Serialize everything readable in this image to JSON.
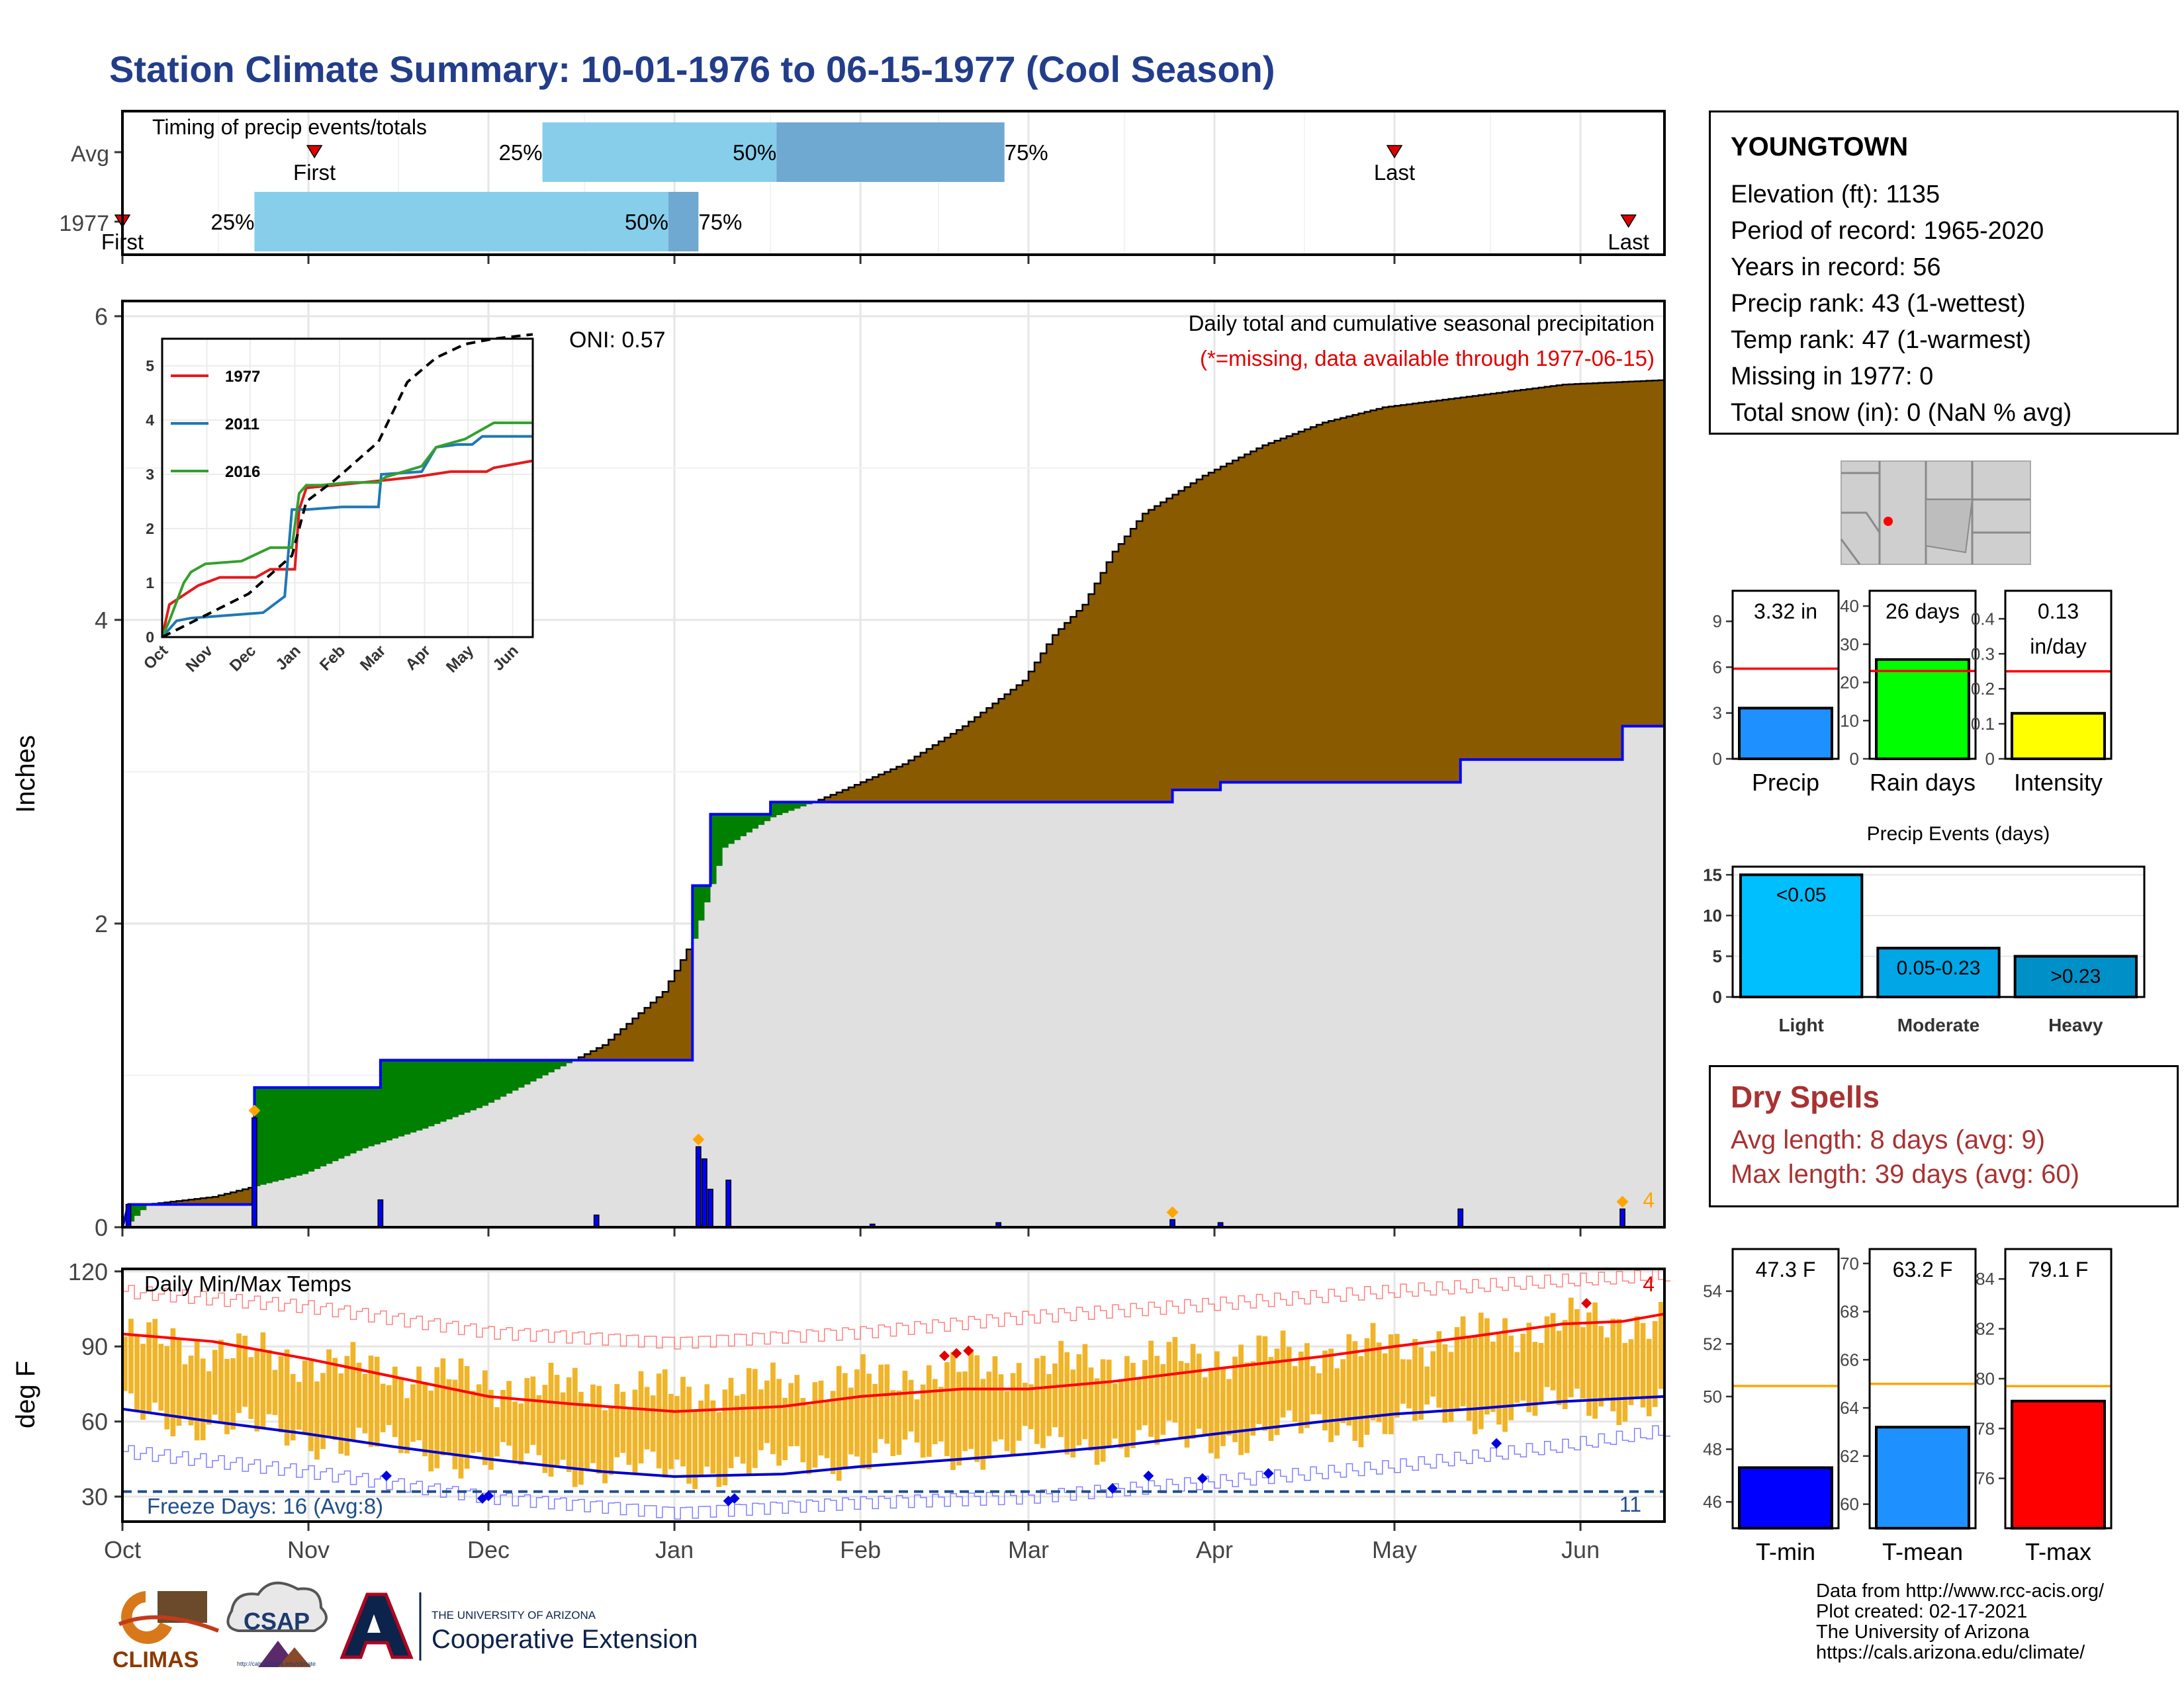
{
  "title": "Station Climate Summary: 10-01-1976 to 06-15-1977 (Cool Season)",
  "colors": {
    "title": "#223d8a",
    "cumulative_fill": "#8a5a00",
    "deficit_fill": "#008000",
    "normal_fill": "#e0e0e0",
    "bars": "#0000ff",
    "temp_bars": "#f0b428",
    "tmax_normal": "#ff0000",
    "tmin_normal": "#0000cc",
    "light": "#00bfff",
    "moderate": "#00a6e6",
    "heavy": "#0090c8",
    "dry": "#a83232"
  },
  "station": {
    "name": "YOUNGTOWN",
    "lines": [
      "Elevation (ft): 1135",
      "Period of record: 1965-2020",
      "Years in record: 56",
      "Precip rank: 43 (1-wettest)",
      "Temp rank: 47 (1-warmest)",
      "Missing in 1977: 0",
      "Total snow (in): 0 (NaN % avg)"
    ]
  },
  "dry_spells": {
    "heading": "Dry Spells",
    "avg": "Avg length: 8 days (avg: 9)",
    "max": "Max length: 39 days (avg: 60)"
  },
  "footer": [
    "Data from http://www.rcc-acis.org/",
    "Plot created: 02-17-2021",
    "The University of Arizona",
    "https://cals.arizona.edu/climate/"
  ],
  "logos": {
    "climas": "CLIMAS",
    "csap": "CSAP",
    "csap_url": "http://cals.arizona.edu/climate",
    "ua_top": "THE UNIVERSITY OF ARIZONA",
    "ua_bottom": "Cooperative Extension"
  },
  "chart_data": [
    {
      "type": "bar",
      "name": "timing",
      "title": "Timing of precip events/totals",
      "x_domain": [
        0,
        257
      ],
      "rows": [
        {
          "label": "Avg",
          "first": 32,
          "last": 212,
          "p25": 70,
          "p50": 109,
          "p75": 147,
          "markers": [
            "First",
            "25%",
            "50%",
            "75%",
            "Last"
          ]
        },
        {
          "label": "1977",
          "first": 0,
          "last": 251,
          "p25": 22,
          "p50": 91,
          "p75": 96,
          "markers": [
            "First",
            "25%",
            "50%",
            "75%",
            "Last"
          ]
        }
      ]
    },
    {
      "type": "area",
      "name": "precipitation",
      "title": "Daily total and cumulative seasonal precipitation",
      "subtitle": "(*=missing, data available through 1977-06-15)",
      "annotation": "ONI: 0.57",
      "ylabel": "Inches",
      "ylim": [
        0,
        6.1
      ],
      "yticks": [
        0,
        2,
        4,
        6
      ],
      "corner_value": "4",
      "normal_cumulative": [
        [
          0,
          0
        ],
        [
          4,
          0.15
        ],
        [
          15,
          0.2
        ],
        [
          25,
          0.3
        ],
        [
          30,
          0.35
        ],
        [
          40,
          0.52
        ],
        [
          50,
          0.65
        ],
        [
          60,
          0.8
        ],
        [
          70,
          1.0
        ],
        [
          80,
          1.2
        ],
        [
          90,
          1.55
        ],
        [
          95,
          1.9
        ],
        [
          100,
          2.5
        ],
        [
          108,
          2.7
        ],
        [
          115,
          2.8
        ],
        [
          120,
          2.88
        ],
        [
          130,
          3.05
        ],
        [
          140,
          3.3
        ],
        [
          150,
          3.6
        ],
        [
          155,
          3.9
        ],
        [
          160,
          4.1
        ],
        [
          165,
          4.45
        ],
        [
          170,
          4.7
        ],
        [
          180,
          4.95
        ],
        [
          190,
          5.15
        ],
        [
          200,
          5.3
        ],
        [
          210,
          5.4
        ],
        [
          220,
          5.45
        ],
        [
          230,
          5.5
        ],
        [
          240,
          5.55
        ],
        [
          257,
          5.58
        ]
      ],
      "observed_cumulative": [
        [
          0,
          0
        ],
        [
          1,
          0.15
        ],
        [
          22,
          0.15
        ],
        [
          22,
          0.92
        ],
        [
          43,
          0.92
        ],
        [
          43,
          1.1
        ],
        [
          95,
          1.1
        ],
        [
          95,
          2.25
        ],
        [
          98,
          2.25
        ],
        [
          98,
          2.72
        ],
        [
          108,
          2.72
        ],
        [
          108,
          2.8
        ],
        [
          165,
          2.8
        ],
        [
          175,
          2.8
        ],
        [
          175,
          2.88
        ],
        [
          183,
          2.88
        ],
        [
          183,
          2.93
        ],
        [
          223,
          2.93
        ],
        [
          223,
          3.08
        ],
        [
          250,
          3.08
        ],
        [
          250,
          3.3
        ],
        [
          257,
          3.3
        ]
      ],
      "daily_bars": [
        [
          1,
          0.15
        ],
        [
          22,
          0.72
        ],
        [
          43,
          0.18
        ],
        [
          79,
          0.08
        ],
        [
          96,
          0.53
        ],
        [
          97,
          0.45
        ],
        [
          98,
          0.25
        ],
        [
          101,
          0.31
        ],
        [
          125,
          0.02
        ],
        [
          146,
          0.03
        ],
        [
          175,
          0.05
        ],
        [
          183,
          0.03
        ],
        [
          223,
          0.12
        ],
        [
          250,
          0.12
        ]
      ],
      "missing_markers": [
        22,
        96,
        175,
        250
      ],
      "inset": {
        "type": "line",
        "ylim": [
          0,
          5.5
        ],
        "yticks": [
          0,
          1,
          2,
          3,
          4,
          5
        ],
        "xticks": [
          "Oct",
          "Nov",
          "Dec",
          "Jan",
          "Feb",
          "Mar",
          "Apr",
          "May",
          "Jun"
        ],
        "series": [
          {
            "name": "1977",
            "color": "#e31a1c",
            "points": [
              [
                0,
                0
              ],
              [
                5,
                0.6
              ],
              [
                25,
                0.95
              ],
              [
                40,
                1.1
              ],
              [
                65,
                1.1
              ],
              [
                75,
                1.25
              ],
              [
                92,
                1.25
              ],
              [
                95,
                2.35
              ],
              [
                100,
                2.75
              ],
              [
                120,
                2.8
              ],
              [
                150,
                2.88
              ],
              [
                175,
                2.95
              ],
              [
                200,
                3.05
              ],
              [
                225,
                3.05
              ],
              [
                230,
                3.12
              ],
              [
                257,
                3.25
              ]
            ]
          },
          {
            "name": "2011",
            "color": "#1f78b4",
            "points": [
              [
                0,
                0
              ],
              [
                10,
                0.3
              ],
              [
                20,
                0.35
              ],
              [
                45,
                0.4
              ],
              [
                70,
                0.45
              ],
              [
                85,
                0.75
              ],
              [
                90,
                2.35
              ],
              [
                100,
                2.35
              ],
              [
                125,
                2.4
              ],
              [
                150,
                2.4
              ],
              [
                152,
                3.0
              ],
              [
                180,
                3.05
              ],
              [
                190,
                3.5
              ],
              [
                205,
                3.55
              ],
              [
                215,
                3.55
              ],
              [
                222,
                3.7
              ],
              [
                257,
                3.7
              ]
            ]
          },
          {
            "name": "2016",
            "color": "#33a02c",
            "points": [
              [
                0,
                0
              ],
              [
                5,
                0.3
              ],
              [
                15,
                1.0
              ],
              [
                20,
                1.2
              ],
              [
                30,
                1.35
              ],
              [
                55,
                1.4
              ],
              [
                75,
                1.65
              ],
              [
                90,
                1.65
              ],
              [
                95,
                2.65
              ],
              [
                100,
                2.8
              ],
              [
                110,
                2.8
              ],
              [
                130,
                2.85
              ],
              [
                150,
                2.85
              ],
              [
                155,
                2.95
              ],
              [
                180,
                3.15
              ],
              [
                190,
                3.5
              ],
              [
                210,
                3.65
              ],
              [
                230,
                3.95
              ],
              [
                257,
                3.95
              ]
            ]
          },
          {
            "name": "normal",
            "color": "#000000",
            "dashed": true,
            "points": [
              [
                0,
                0
              ],
              [
                30,
                0.4
              ],
              [
                60,
                0.8
              ],
              [
                90,
                1.5
              ],
              [
                100,
                2.5
              ],
              [
                120,
                2.9
              ],
              [
                150,
                3.6
              ],
              [
                170,
                4.7
              ],
              [
                190,
                5.15
              ],
              [
                210,
                5.4
              ],
              [
                230,
                5.5
              ],
              [
                257,
                5.58
              ]
            ]
          }
        ]
      }
    },
    {
      "type": "bar",
      "name": "temperatures",
      "title": "Daily Min/Max Temps",
      "annotation": "Freeze Days: 16 (Avg:8)",
      "ylabel": "deg F",
      "ylim": [
        20,
        121
      ],
      "yticks": [
        30,
        60,
        90,
        120
      ],
      "freeze_line": 32,
      "corner_top": "4",
      "corner_bottom": "11",
      "xticks": [
        "Oct",
        "Nov",
        "Dec",
        "Jan",
        "Feb",
        "Mar",
        "Apr",
        "May",
        "Jun"
      ],
      "tmax_normal": [
        [
          0,
          95
        ],
        [
          15,
          92
        ],
        [
          31,
          85
        ],
        [
          45,
          78
        ],
        [
          61,
          70
        ],
        [
          75,
          67
        ],
        [
          92,
          64
        ],
        [
          110,
          66
        ],
        [
          123,
          70
        ],
        [
          140,
          73
        ],
        [
          151,
          73
        ],
        [
          165,
          76
        ],
        [
          182,
          81
        ],
        [
          200,
          86
        ],
        [
          212,
          90
        ],
        [
          225,
          94
        ],
        [
          240,
          99
        ],
        [
          250,
          100
        ],
        [
          257,
          103
        ]
      ],
      "tmin_normal": [
        [
          0,
          65
        ],
        [
          15,
          60
        ],
        [
          31,
          55
        ],
        [
          45,
          50
        ],
        [
          61,
          45
        ],
        [
          80,
          40
        ],
        [
          92,
          38
        ],
        [
          110,
          39
        ],
        [
          123,
          42
        ],
        [
          140,
          45
        ],
        [
          151,
          47
        ],
        [
          165,
          50
        ],
        [
          182,
          55
        ],
        [
          200,
          60
        ],
        [
          212,
          63
        ],
        [
          225,
          65
        ],
        [
          240,
          68
        ],
        [
          257,
          70
        ]
      ],
      "record_high": [
        [
          0,
          112
        ],
        [
          31,
          106
        ],
        [
          61,
          96
        ],
        [
          92,
          92
        ],
        [
          123,
          96
        ],
        [
          151,
          102
        ],
        [
          182,
          107
        ],
        [
          212,
          112
        ],
        [
          240,
          116
        ],
        [
          257,
          118
        ]
      ],
      "record_low": [
        [
          0,
          48
        ],
        [
          31,
          40
        ],
        [
          61,
          30
        ],
        [
          92,
          24
        ],
        [
          123,
          28
        ],
        [
          151,
          30
        ],
        [
          182,
          36
        ],
        [
          212,
          42
        ],
        [
          240,
          50
        ],
        [
          257,
          56
        ]
      ],
      "obs": {
        "tmax_base": [
          [
            0,
            94
          ],
          [
            31,
            84
          ],
          [
            61,
            75
          ],
          [
            92,
            72
          ],
          [
            123,
            77
          ],
          [
            150,
            82
          ],
          [
            182,
            86
          ],
          [
            212,
            90
          ],
          [
            240,
            100
          ],
          [
            257,
            100
          ]
        ],
        "tmin_base": [
          [
            0,
            64
          ],
          [
            31,
            54
          ],
          [
            61,
            44
          ],
          [
            92,
            40
          ],
          [
            123,
            46
          ],
          [
            150,
            50
          ],
          [
            182,
            53
          ],
          [
            212,
            60
          ],
          [
            240,
            66
          ],
          [
            257,
            68
          ]
        ]
      },
      "record_hi_markers": [
        [
          137,
          86
        ],
        [
          139,
          87
        ],
        [
          141,
          88
        ],
        [
          244,
          107
        ]
      ],
      "record_lo_markers": [
        [
          44,
          38
        ],
        [
          60,
          29
        ],
        [
          61,
          30
        ],
        [
          101,
          28
        ],
        [
          102,
          29
        ],
        [
          165,
          33
        ],
        [
          171,
          38
        ],
        [
          180,
          37
        ],
        [
          191,
          39
        ],
        [
          229,
          51
        ]
      ]
    },
    {
      "type": "bar",
      "name": "precip_totals",
      "panels": [
        {
          "label": "Precip",
          "value": 3.32,
          "value_label": "3.32 in",
          "avg": 5.9,
          "ylim": [
            0,
            11
          ],
          "yticks": [
            0,
            3,
            6,
            9
          ],
          "color": "#1e90ff"
        },
        {
          "label": "Rain days",
          "value": 26,
          "value_label": "26 days",
          "avg": 23,
          "ylim": [
            0,
            44
          ],
          "yticks": [
            0,
            10,
            20,
            30,
            40
          ],
          "color": "#00ff00"
        },
        {
          "label": "Intensity",
          "value": 0.13,
          "value_label": "0.13",
          "value_label2": "in/day",
          "avg": 0.25,
          "ylim": [
            0,
            0.48
          ],
          "yticks": [
            0.0,
            0.1,
            0.2,
            0.3,
            0.4
          ],
          "color": "#ffff00"
        }
      ]
    },
    {
      "type": "bar",
      "name": "precip_events",
      "title": "Precip Events (days)",
      "categories": [
        "Light",
        "Moderate",
        "Heavy"
      ],
      "bar_labels": [
        "<0.05",
        "0.05-0.23",
        ">0.23"
      ],
      "values": [
        15,
        6,
        5
      ],
      "ylim": [
        0,
        16
      ],
      "yticks": [
        0,
        5,
        10,
        15
      ]
    },
    {
      "type": "bar",
      "name": "temp_summary",
      "panels": [
        {
          "label": "T-min",
          "value": 47.3,
          "value_label": "47.3 F",
          "avg": 50.4,
          "ylim": [
            45,
            55.6
          ],
          "yticks": [
            46,
            48,
            50,
            52,
            54
          ],
          "color": "#0000ff"
        },
        {
          "label": "T-mean",
          "value": 63.2,
          "value_label": "63.2 F",
          "avg": 65.0,
          "ylim": [
            59,
            70.6
          ],
          "yticks": [
            60,
            62,
            64,
            66,
            68,
            70
          ],
          "color": "#1e90ff"
        },
        {
          "label": "T-max",
          "value": 79.1,
          "value_label": "79.1 F",
          "avg": 79.7,
          "ylim": [
            74,
            85.2
          ],
          "yticks": [
            76,
            78,
            80,
            82,
            84
          ],
          "color": "#ff0000"
        }
      ]
    }
  ]
}
